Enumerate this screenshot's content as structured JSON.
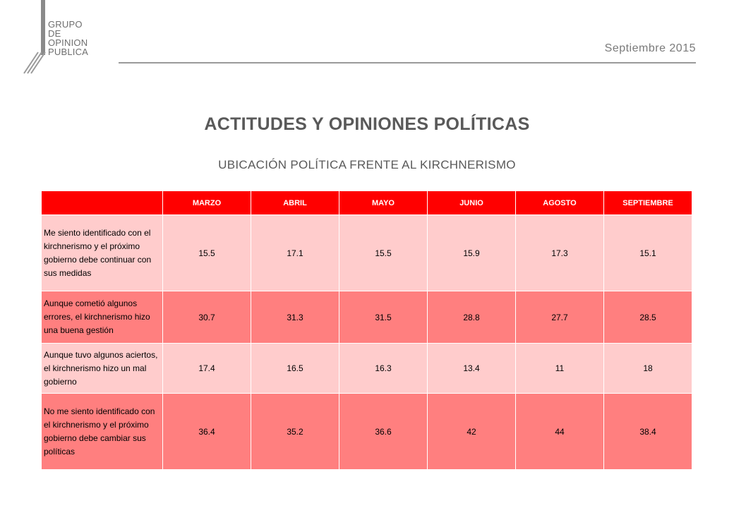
{
  "logo": {
    "lines": [
      "GRUPO",
      "DE",
      "OPINION",
      "PUBLICA"
    ]
  },
  "header": {
    "date": "Septiembre 2015"
  },
  "title": "ACTITUDES Y OPINIONES POLÍTICAS",
  "subtitle": "UBICACIÓN POLÍTICA FRENTE AL KIRCHNERISMO",
  "colors": {
    "header_bg": "#ff0000",
    "row_light": "#ffcccc",
    "row_dark": "#ff7f7f",
    "text_gray": "#595959"
  },
  "chart_data": {
    "type": "table",
    "columns": [
      "",
      "MARZO",
      "ABRIL",
      "MAYO",
      "JUNIO",
      "AGOSTO",
      "SEPTIEMBRE"
    ],
    "rows": [
      {
        "label": "Me siento identificado con el kirchnerismo y el próximo gobierno debe continuar con sus medidas",
        "values": [
          "15.5",
          "17.1",
          "15.5",
          "15.9",
          "17.3",
          "15.1"
        ]
      },
      {
        "label": "Aunque cometió algunos errores, el kirchnerismo hizo una buena gestión",
        "values": [
          "30.7",
          "31.3",
          "31.5",
          "28.8",
          "27.7",
          "28.5"
        ]
      },
      {
        "label": "Aunque tuvo algunos aciertos, el kirchnerismo hizo un mal gobierno",
        "values": [
          "17.4",
          "16.5",
          "16.3",
          "13.4",
          "11",
          "18"
        ]
      },
      {
        "label": "No me siento identificado con el kirchnerismo y el próximo gobierno debe cambiar sus políticas",
        "values": [
          "36.4",
          "35.2",
          "36.6",
          "42",
          "44",
          "38.4"
        ]
      }
    ]
  }
}
